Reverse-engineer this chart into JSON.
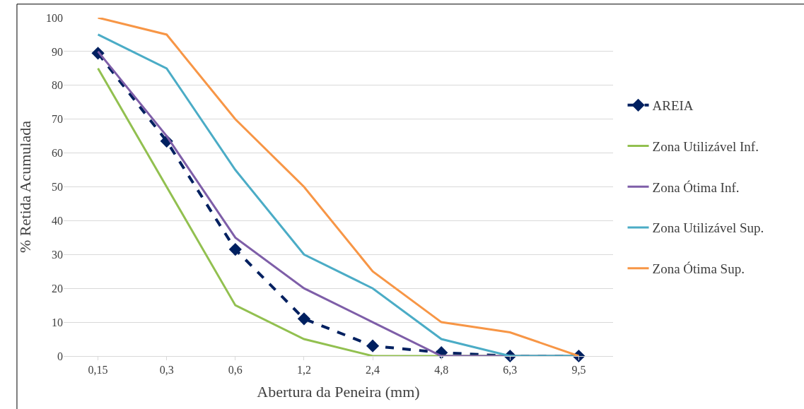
{
  "chart_data": {
    "type": "line",
    "xlabel": "Abertura da Peneira (mm)",
    "ylabel": "% Retida Acumulada",
    "categories": [
      "0,15",
      "0,3",
      "0,6",
      "1,2",
      "2,4",
      "4,8",
      "6,3",
      "9,5"
    ],
    "series": [
      {
        "name": "AREIA",
        "color": "#002060",
        "values": [
          89.5,
          63.5,
          31.5,
          11,
          3,
          1,
          0,
          0
        ],
        "marker": "diamond",
        "line_style": "dashed"
      },
      {
        "name": "Zona Utilizável Inf.",
        "color": "#92c050",
        "values": [
          85,
          50,
          15,
          5,
          0,
          0,
          0,
          0
        ],
        "marker": "none",
        "line_style": "solid"
      },
      {
        "name": "Zona Ótima Inf.",
        "color": "#7e5ea8",
        "values": [
          90,
          65,
          35,
          20,
          10,
          0,
          0,
          0
        ],
        "marker": "none",
        "line_style": "solid"
      },
      {
        "name": "Zona Utilizável Sup.",
        "color": "#4bacc6",
        "values": [
          95,
          85,
          55,
          30,
          20,
          5,
          0,
          0
        ],
        "marker": "none",
        "line_style": "solid"
      },
      {
        "name": "Zona Ótima Sup.",
        "color": "#f79646",
        "values": [
          100,
          95,
          70,
          50,
          25,
          10,
          7,
          0
        ],
        "marker": "none",
        "line_style": "solid"
      }
    ],
    "ylim": [
      0,
      100
    ],
    "yticks": [
      0,
      10,
      20,
      30,
      40,
      50,
      60,
      70,
      80,
      90,
      100
    ],
    "grid": "y",
    "legend": "right"
  }
}
